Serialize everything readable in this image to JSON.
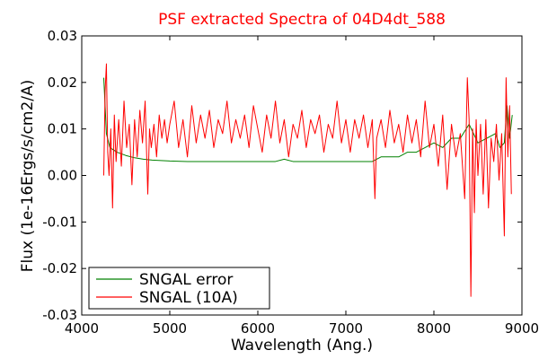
{
  "chart_data": {
    "type": "line",
    "title": "PSF extracted Spectra of 04D4dt_588",
    "title_color": "#ff0000",
    "xlabel": "Wavelength (Ang.)",
    "ylabel": "Flux (1e-16Ergs/s/cm2/A)",
    "xlim": [
      4000,
      9000
    ],
    "ylim": [
      -0.03,
      0.03
    ],
    "x_ticks": [
      4000,
      5000,
      6000,
      7000,
      8000,
      9000
    ],
    "x_tick_labels": [
      "4000",
      "5000",
      "6000",
      "7000",
      "8000",
      "9000"
    ],
    "y_ticks": [
      -0.03,
      -0.02,
      -0.01,
      0.0,
      0.01,
      0.02,
      0.03
    ],
    "y_tick_labels": [
      "-0.03",
      "-0.02",
      "-0.01",
      "0.00",
      "0.01",
      "0.02",
      "0.03"
    ],
    "grid": false,
    "legend_position": "bottom-left",
    "series": [
      {
        "name": "SNGAL error",
        "color": "#008000",
        "x": [
          4250,
          4280,
          4320,
          4400,
          4500,
          4600,
          4700,
          4800,
          4900,
          5000,
          5200,
          5400,
          5600,
          5800,
          6000,
          6200,
          6300,
          6400,
          6600,
          6800,
          7000,
          7200,
          7300,
          7400,
          7500,
          7600,
          7700,
          7800,
          7900,
          8000,
          8100,
          8200,
          8300,
          8400,
          8500,
          8600,
          8700,
          8750,
          8800,
          8830,
          8860,
          8890
        ],
        "y": [
          0.021,
          0.009,
          0.006,
          0.005,
          0.0043,
          0.0038,
          0.0035,
          0.0033,
          0.0032,
          0.0031,
          0.003,
          0.003,
          0.003,
          0.003,
          0.003,
          0.003,
          0.0035,
          0.003,
          0.003,
          0.003,
          0.003,
          0.003,
          0.003,
          0.004,
          0.004,
          0.004,
          0.005,
          0.005,
          0.006,
          0.007,
          0.006,
          0.008,
          0.008,
          0.011,
          0.007,
          0.008,
          0.009,
          0.006,
          0.007,
          0.015,
          0.008,
          0.013
        ]
      },
      {
        "name": "SNGAL (10A)",
        "color": "#ff0000",
        "x": [
          4250,
          4265,
          4280,
          4295,
          4310,
          4330,
          4350,
          4370,
          4390,
          4420,
          4450,
          4480,
          4510,
          4540,
          4570,
          4600,
          4630,
          4660,
          4690,
          4720,
          4750,
          4770,
          4790,
          4820,
          4850,
          4880,
          4910,
          4940,
          4970,
          5000,
          5050,
          5100,
          5150,
          5200,
          5250,
          5300,
          5350,
          5400,
          5450,
          5500,
          5550,
          5600,
          5650,
          5700,
          5750,
          5800,
          5850,
          5900,
          5950,
          6000,
          6050,
          6100,
          6150,
          6200,
          6250,
          6300,
          6350,
          6400,
          6450,
          6500,
          6550,
          6600,
          6650,
          6700,
          6750,
          6800,
          6850,
          6900,
          6950,
          7000,
          7050,
          7100,
          7150,
          7200,
          7250,
          7300,
          7330,
          7350,
          7400,
          7450,
          7500,
          7550,
          7600,
          7650,
          7700,
          7750,
          7800,
          7850,
          7900,
          7950,
          8000,
          8050,
          8100,
          8150,
          8200,
          8250,
          8300,
          8350,
          8380,
          8400,
          8420,
          8440,
          8460,
          8480,
          8500,
          8530,
          8560,
          8590,
          8620,
          8650,
          8680,
          8710,
          8740,
          8770,
          8800,
          8820,
          8840,
          8860,
          8880
        ],
        "y": [
          0.0,
          0.018,
          0.024,
          0.005,
          0.0,
          0.01,
          -0.007,
          0.013,
          0.003,
          0.012,
          0.002,
          0.016,
          0.006,
          0.011,
          -0.002,
          0.012,
          0.004,
          0.014,
          0.007,
          0.016,
          -0.004,
          0.01,
          0.006,
          0.011,
          0.004,
          0.013,
          0.008,
          0.012,
          0.007,
          0.011,
          0.016,
          0.006,
          0.012,
          0.004,
          0.015,
          0.007,
          0.013,
          0.008,
          0.014,
          0.006,
          0.012,
          0.009,
          0.016,
          0.007,
          0.012,
          0.008,
          0.013,
          0.006,
          0.015,
          0.01,
          0.005,
          0.013,
          0.008,
          0.016,
          0.007,
          0.012,
          0.004,
          0.011,
          0.008,
          0.014,
          0.006,
          0.012,
          0.009,
          0.013,
          0.005,
          0.011,
          0.008,
          0.016,
          0.007,
          0.012,
          0.005,
          0.012,
          0.008,
          0.013,
          0.006,
          0.012,
          -0.005,
          0.008,
          0.012,
          0.006,
          0.014,
          0.007,
          0.011,
          0.005,
          0.013,
          0.007,
          0.012,
          0.004,
          0.016,
          0.006,
          0.011,
          0.002,
          0.013,
          -0.003,
          0.011,
          0.004,
          0.009,
          -0.005,
          0.021,
          0.012,
          -0.026,
          0.01,
          -0.008,
          0.012,
          0.0,
          0.011,
          -0.004,
          0.012,
          -0.007,
          0.008,
          0.003,
          0.011,
          -0.001,
          0.009,
          -0.013,
          0.021,
          0.004,
          0.015,
          -0.004
        ]
      }
    ]
  }
}
